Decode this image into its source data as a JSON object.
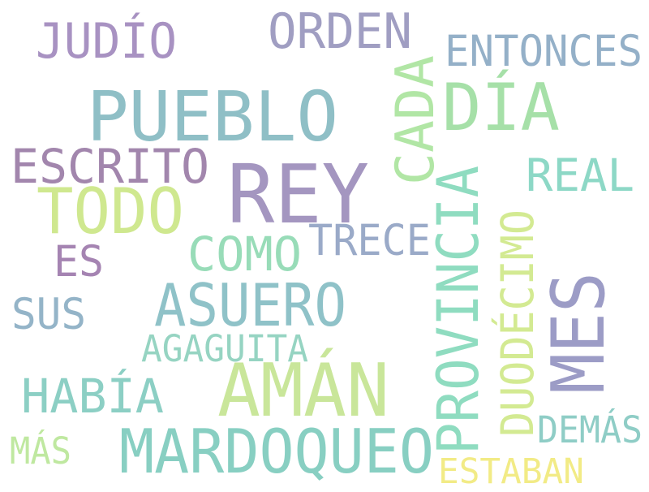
{
  "words": [
    {
      "text": "REY",
      "color": "#a496c0",
      "rotated": false
    },
    {
      "text": "PUEBLO",
      "color": "#8fbfc6",
      "rotated": false
    },
    {
      "text": "AMÁN",
      "color": "#c9e69a",
      "rotated": false
    },
    {
      "text": "MES",
      "color": "#9c9cc6",
      "rotated": true
    },
    {
      "text": "DÍA",
      "color": "#a6e0a8",
      "rotated": false
    },
    {
      "text": "TODO",
      "color": "#cfe88f",
      "rotated": false
    },
    {
      "text": "MARDOQUEO",
      "color": "#88cfc2",
      "rotated": false
    },
    {
      "text": "PROVINCIA",
      "color": "#8fdcc0",
      "rotated": true
    },
    {
      "text": "ASUERO",
      "color": "#8fc2c8",
      "rotated": false
    },
    {
      "text": "CADA",
      "color": "#b1e6a5",
      "rotated": true
    },
    {
      "text": "ESCRITO",
      "color": "#a286ad",
      "rotated": false
    },
    {
      "text": "JUDÍO",
      "color": "#a892c2",
      "rotated": false
    },
    {
      "text": "ORDEN",
      "color": "#a09ec2",
      "rotated": false
    },
    {
      "text": "REAL",
      "color": "#8dd8c6",
      "rotated": false
    },
    {
      "text": "COMO",
      "color": "#98dcb8",
      "rotated": false
    },
    {
      "text": "ENTONCES",
      "color": "#94b0c8",
      "rotated": false
    },
    {
      "text": "TRECE",
      "color": "#9aaac8",
      "rotated": false
    },
    {
      "text": "DUODÉCIMO",
      "color": "#d3ea92",
      "rotated": true
    },
    {
      "text": "HABÍA",
      "color": "#8ccfc4",
      "rotated": false
    },
    {
      "text": "SUS",
      "color": "#94b4c8",
      "rotated": false
    },
    {
      "text": "AGAGUITA",
      "color": "#96d4c2",
      "rotated": false
    },
    {
      "text": "ES",
      "color": "#a584b2",
      "rotated": false
    },
    {
      "text": "DEMÁS",
      "color": "#8fcdc6",
      "rotated": false
    },
    {
      "text": "ESTABAN",
      "color": "#f2eb86",
      "rotated": false
    },
    {
      "text": "MÁS",
      "color": "#bfe8a0",
      "rotated": false
    }
  ]
}
